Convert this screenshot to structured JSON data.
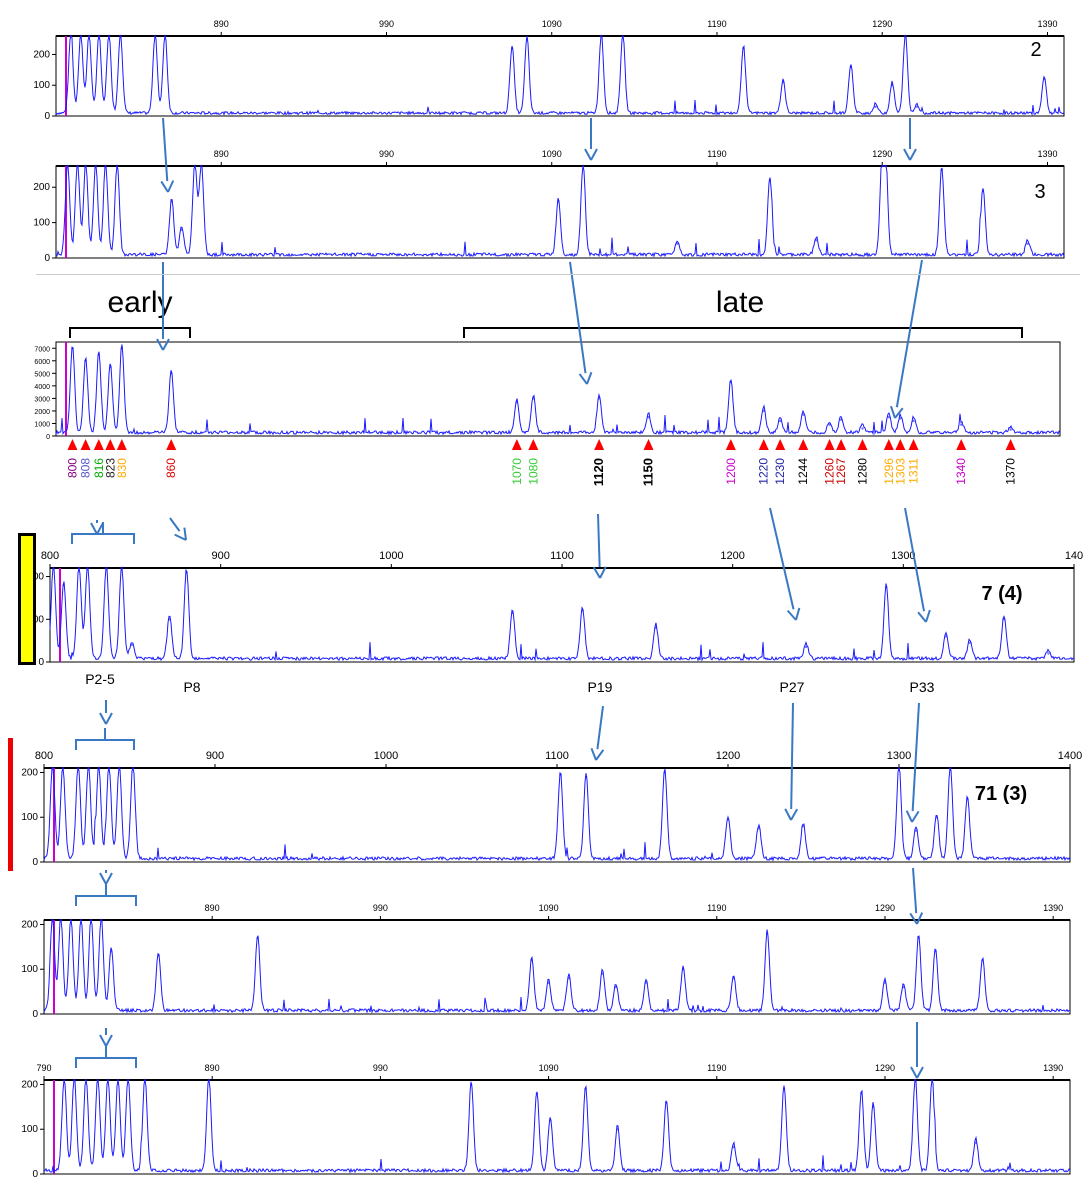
{
  "figure": {
    "group_labels": {
      "early": "early",
      "late": "late"
    },
    "sample_labels": [
      "2",
      "3",
      "7 (4)",
      "71 (3)"
    ],
    "peak_labels": [
      "P2-5",
      "P8",
      "P19",
      "P27",
      "P33"
    ],
    "colors": {
      "trace": "#1a1aff",
      "arrow": "#3a78c4",
      "marker": "#ff0000",
      "size_standard": "#cc00cc",
      "yellow_bar": "#ffff00",
      "red_bar": "#ee0000"
    }
  },
  "chart_data": [
    {
      "type": "line",
      "panel": "2",
      "xaxis_ticks": [
        "890",
        "990",
        "1090",
        "1190",
        "1290",
        "1390"
      ],
      "yaxis_ticks": [
        "0",
        "100",
        "200"
      ],
      "ylim": [
        0,
        260
      ],
      "peaks": [
        {
          "x": 799,
          "y": 260
        },
        {
          "x": 805,
          "y": 260
        },
        {
          "x": 810,
          "y": 260
        },
        {
          "x": 816,
          "y": 260
        },
        {
          "x": 822,
          "y": 260
        },
        {
          "x": 829,
          "y": 260
        },
        {
          "x": 850,
          "y": 260
        },
        {
          "x": 856,
          "y": 260
        },
        {
          "x": 1066,
          "y": 220
        },
        {
          "x": 1075,
          "y": 250
        },
        {
          "x": 1120,
          "y": 260
        },
        {
          "x": 1133,
          "y": 260
        },
        {
          "x": 1206,
          "y": 220
        },
        {
          "x": 1230,
          "y": 110
        },
        {
          "x": 1271,
          "y": 160
        },
        {
          "x": 1286,
          "y": 30
        },
        {
          "x": 1296,
          "y": 100
        },
        {
          "x": 1304,
          "y": 260
        },
        {
          "x": 1311,
          "y": 30
        },
        {
          "x": 1388,
          "y": 120
        }
      ]
    },
    {
      "type": "line",
      "panel": "3",
      "xaxis_ticks": [
        "890",
        "990",
        "1090",
        "1190",
        "1290",
        "1390"
      ],
      "yaxis_ticks": [
        "0",
        "100",
        "200"
      ],
      "ylim": [
        0,
        260
      ],
      "peaks": [
        {
          "x": 797,
          "y": 260
        },
        {
          "x": 803,
          "y": 260
        },
        {
          "x": 808,
          "y": 260
        },
        {
          "x": 814,
          "y": 260
        },
        {
          "x": 820,
          "y": 260
        },
        {
          "x": 827,
          "y": 260
        },
        {
          "x": 860,
          "y": 160
        },
        {
          "x": 866,
          "y": 80
        },
        {
          "x": 874,
          "y": 260
        },
        {
          "x": 878,
          "y": 260
        },
        {
          "x": 1094,
          "y": 160
        },
        {
          "x": 1109,
          "y": 260
        },
        {
          "x": 1166,
          "y": 40
        },
        {
          "x": 1222,
          "y": 220
        },
        {
          "x": 1250,
          "y": 50
        },
        {
          "x": 1290,
          "y": 260
        },
        {
          "x": 1292,
          "y": 260
        },
        {
          "x": 1326,
          "y": 250
        },
        {
          "x": 1351,
          "y": 190
        },
        {
          "x": 1378,
          "y": 40
        }
      ]
    },
    {
      "type": "line",
      "panel": "reference",
      "yaxis_ticks": [
        "0",
        "1000",
        "2000",
        "3000",
        "4000",
        "5000",
        "6000",
        "7000"
      ],
      "ylim": [
        0,
        7500
      ],
      "markers": [
        {
          "label": "800",
          "color": "#800080"
        },
        {
          "label": "808",
          "color": "#5555cc"
        },
        {
          "label": "816",
          "color": "#00aa00"
        },
        {
          "label": "823",
          "color": "#222222"
        },
        {
          "label": "830",
          "color": "#ffaa00"
        },
        {
          "label": "860",
          "color": "#dd0000"
        },
        {
          "label": "1070",
          "color": "#33cc33"
        },
        {
          "label": "1080",
          "color": "#33cc33"
        },
        {
          "label": "1120",
          "color": "#000000"
        },
        {
          "label": "1150",
          "color": "#000000"
        },
        {
          "label": "1200",
          "color": "#cc00cc"
        },
        {
          "label": "1220",
          "color": "#2222aa"
        },
        {
          "label": "1230",
          "color": "#2222aa"
        },
        {
          "label": "1244",
          "color": "#000000"
        },
        {
          "label": "1260",
          "color": "#cc0000"
        },
        {
          "label": "1267",
          "color": "#cc0000"
        },
        {
          "label": "1280",
          "color": "#000000"
        },
        {
          "label": "1296",
          "color": "#ffaa00"
        },
        {
          "label": "1303",
          "color": "#ffaa00"
        },
        {
          "label": "1311",
          "color": "#ffaa00"
        },
        {
          "label": "1340",
          "color": "#cc00cc"
        },
        {
          "label": "1370",
          "color": "#000000"
        }
      ],
      "peaks": [
        {
          "x": 800,
          "y": 7000
        },
        {
          "x": 808,
          "y": 6000
        },
        {
          "x": 816,
          "y": 6500
        },
        {
          "x": 823,
          "y": 5500
        },
        {
          "x": 830,
          "y": 7000
        },
        {
          "x": 860,
          "y": 5000
        },
        {
          "x": 1070,
          "y": 2700
        },
        {
          "x": 1080,
          "y": 3000
        },
        {
          "x": 1120,
          "y": 3000
        },
        {
          "x": 1150,
          "y": 1500
        },
        {
          "x": 1200,
          "y": 4300
        },
        {
          "x": 1220,
          "y": 2000
        },
        {
          "x": 1230,
          "y": 1200
        },
        {
          "x": 1244,
          "y": 1700
        },
        {
          "x": 1260,
          "y": 900
        },
        {
          "x": 1267,
          "y": 1300
        },
        {
          "x": 1280,
          "y": 600
        },
        {
          "x": 1296,
          "y": 1500
        },
        {
          "x": 1303,
          "y": 1400
        },
        {
          "x": 1311,
          "y": 1200
        },
        {
          "x": 1340,
          "y": 900
        },
        {
          "x": 1370,
          "y": 500
        }
      ]
    },
    {
      "type": "line",
      "panel": "7 (4)",
      "xaxis_ticks": [
        "800",
        "900",
        "1000",
        "1100",
        "1200",
        "1300",
        "140"
      ],
      "yaxis_ticks": [
        "0",
        "100",
        "200"
      ],
      "ylim": [
        0,
        220
      ],
      "peaks": [
        {
          "x": 802,
          "y": 220
        },
        {
          "x": 808,
          "y": 180
        },
        {
          "x": 817,
          "y": 220
        },
        {
          "x": 822,
          "y": 220
        },
        {
          "x": 833,
          "y": 220
        },
        {
          "x": 842,
          "y": 220
        },
        {
          "x": 848,
          "y": 40
        },
        {
          "x": 870,
          "y": 100
        },
        {
          "x": 880,
          "y": 210
        },
        {
          "x": 1071,
          "y": 115
        },
        {
          "x": 1112,
          "y": 120
        },
        {
          "x": 1155,
          "y": 80
        },
        {
          "x": 1243,
          "y": 35
        },
        {
          "x": 1290,
          "y": 175
        },
        {
          "x": 1325,
          "y": 60
        },
        {
          "x": 1339,
          "y": 45
        },
        {
          "x": 1359,
          "y": 100
        },
        {
          "x": 1385,
          "y": 20
        }
      ]
    },
    {
      "type": "line",
      "panel": "71 (3)",
      "xaxis_ticks": [
        "800",
        "900",
        "1000",
        "1100",
        "1200",
        "1300",
        "1400"
      ],
      "yaxis_ticks": [
        "0",
        "100",
        "200"
      ],
      "ylim": [
        0,
        210
      ],
      "peaks": [
        {
          "x": 805,
          "y": 210
        },
        {
          "x": 811,
          "y": 210
        },
        {
          "x": 820,
          "y": 210
        },
        {
          "x": 826,
          "y": 210
        },
        {
          "x": 832,
          "y": 210
        },
        {
          "x": 838,
          "y": 210
        },
        {
          "x": 844,
          "y": 210
        },
        {
          "x": 852,
          "y": 210
        },
        {
          "x": 1102,
          "y": 195
        },
        {
          "x": 1117,
          "y": 190
        },
        {
          "x": 1163,
          "y": 200
        },
        {
          "x": 1200,
          "y": 95
        },
        {
          "x": 1218,
          "y": 75
        },
        {
          "x": 1244,
          "y": 80
        },
        {
          "x": 1300,
          "y": 210
        },
        {
          "x": 1310,
          "y": 70
        },
        {
          "x": 1322,
          "y": 100
        },
        {
          "x": 1330,
          "y": 210
        },
        {
          "x": 1340,
          "y": 140
        }
      ]
    },
    {
      "type": "line",
      "panel": "6",
      "xaxis_ticks": [
        "890",
        "990",
        "1090",
        "1190",
        "1290",
        "1390"
      ],
      "yaxis_ticks": [
        "0",
        "100",
        "200"
      ],
      "ylim": [
        0,
        210
      ],
      "peaks": [
        {
          "x": 795,
          "y": 210
        },
        {
          "x": 800,
          "y": 210
        },
        {
          "x": 806,
          "y": 210
        },
        {
          "x": 812,
          "y": 210
        },
        {
          "x": 818,
          "y": 210
        },
        {
          "x": 824,
          "y": 210
        },
        {
          "x": 830,
          "y": 140
        },
        {
          "x": 858,
          "y": 130
        },
        {
          "x": 917,
          "y": 170
        },
        {
          "x": 1080,
          "y": 120
        },
        {
          "x": 1090,
          "y": 70
        },
        {
          "x": 1102,
          "y": 80
        },
        {
          "x": 1122,
          "y": 90
        },
        {
          "x": 1130,
          "y": 60
        },
        {
          "x": 1148,
          "y": 70
        },
        {
          "x": 1170,
          "y": 100
        },
        {
          "x": 1200,
          "y": 80
        },
        {
          "x": 1220,
          "y": 180
        },
        {
          "x": 1290,
          "y": 70
        },
        {
          "x": 1301,
          "y": 60
        },
        {
          "x": 1310,
          "y": 170
        },
        {
          "x": 1320,
          "y": 140
        },
        {
          "x": 1348,
          "y": 120
        }
      ]
    },
    {
      "type": "line",
      "panel": "5",
      "xaxis_ticks": [
        "790",
        "890",
        "990",
        "1090",
        "1190",
        "1290",
        "1390"
      ],
      "yaxis_ticks": [
        "0",
        "100",
        "200"
      ],
      "ylim": [
        0,
        210
      ],
      "peaks": [
        {
          "x": 802,
          "y": 210
        },
        {
          "x": 808,
          "y": 210
        },
        {
          "x": 815,
          "y": 210
        },
        {
          "x": 822,
          "y": 210
        },
        {
          "x": 828,
          "y": 210
        },
        {
          "x": 834,
          "y": 210
        },
        {
          "x": 840,
          "y": 210
        },
        {
          "x": 850,
          "y": 210
        },
        {
          "x": 888,
          "y": 210
        },
        {
          "x": 1044,
          "y": 200
        },
        {
          "x": 1083,
          "y": 180
        },
        {
          "x": 1091,
          "y": 120
        },
        {
          "x": 1112,
          "y": 190
        },
        {
          "x": 1131,
          "y": 100
        },
        {
          "x": 1160,
          "y": 160
        },
        {
          "x": 1200,
          "y": 60
        },
        {
          "x": 1230,
          "y": 190
        },
        {
          "x": 1276,
          "y": 180
        },
        {
          "x": 1283,
          "y": 150
        },
        {
          "x": 1308,
          "y": 210
        },
        {
          "x": 1318,
          "y": 210
        },
        {
          "x": 1344,
          "y": 70
        }
      ]
    }
  ]
}
